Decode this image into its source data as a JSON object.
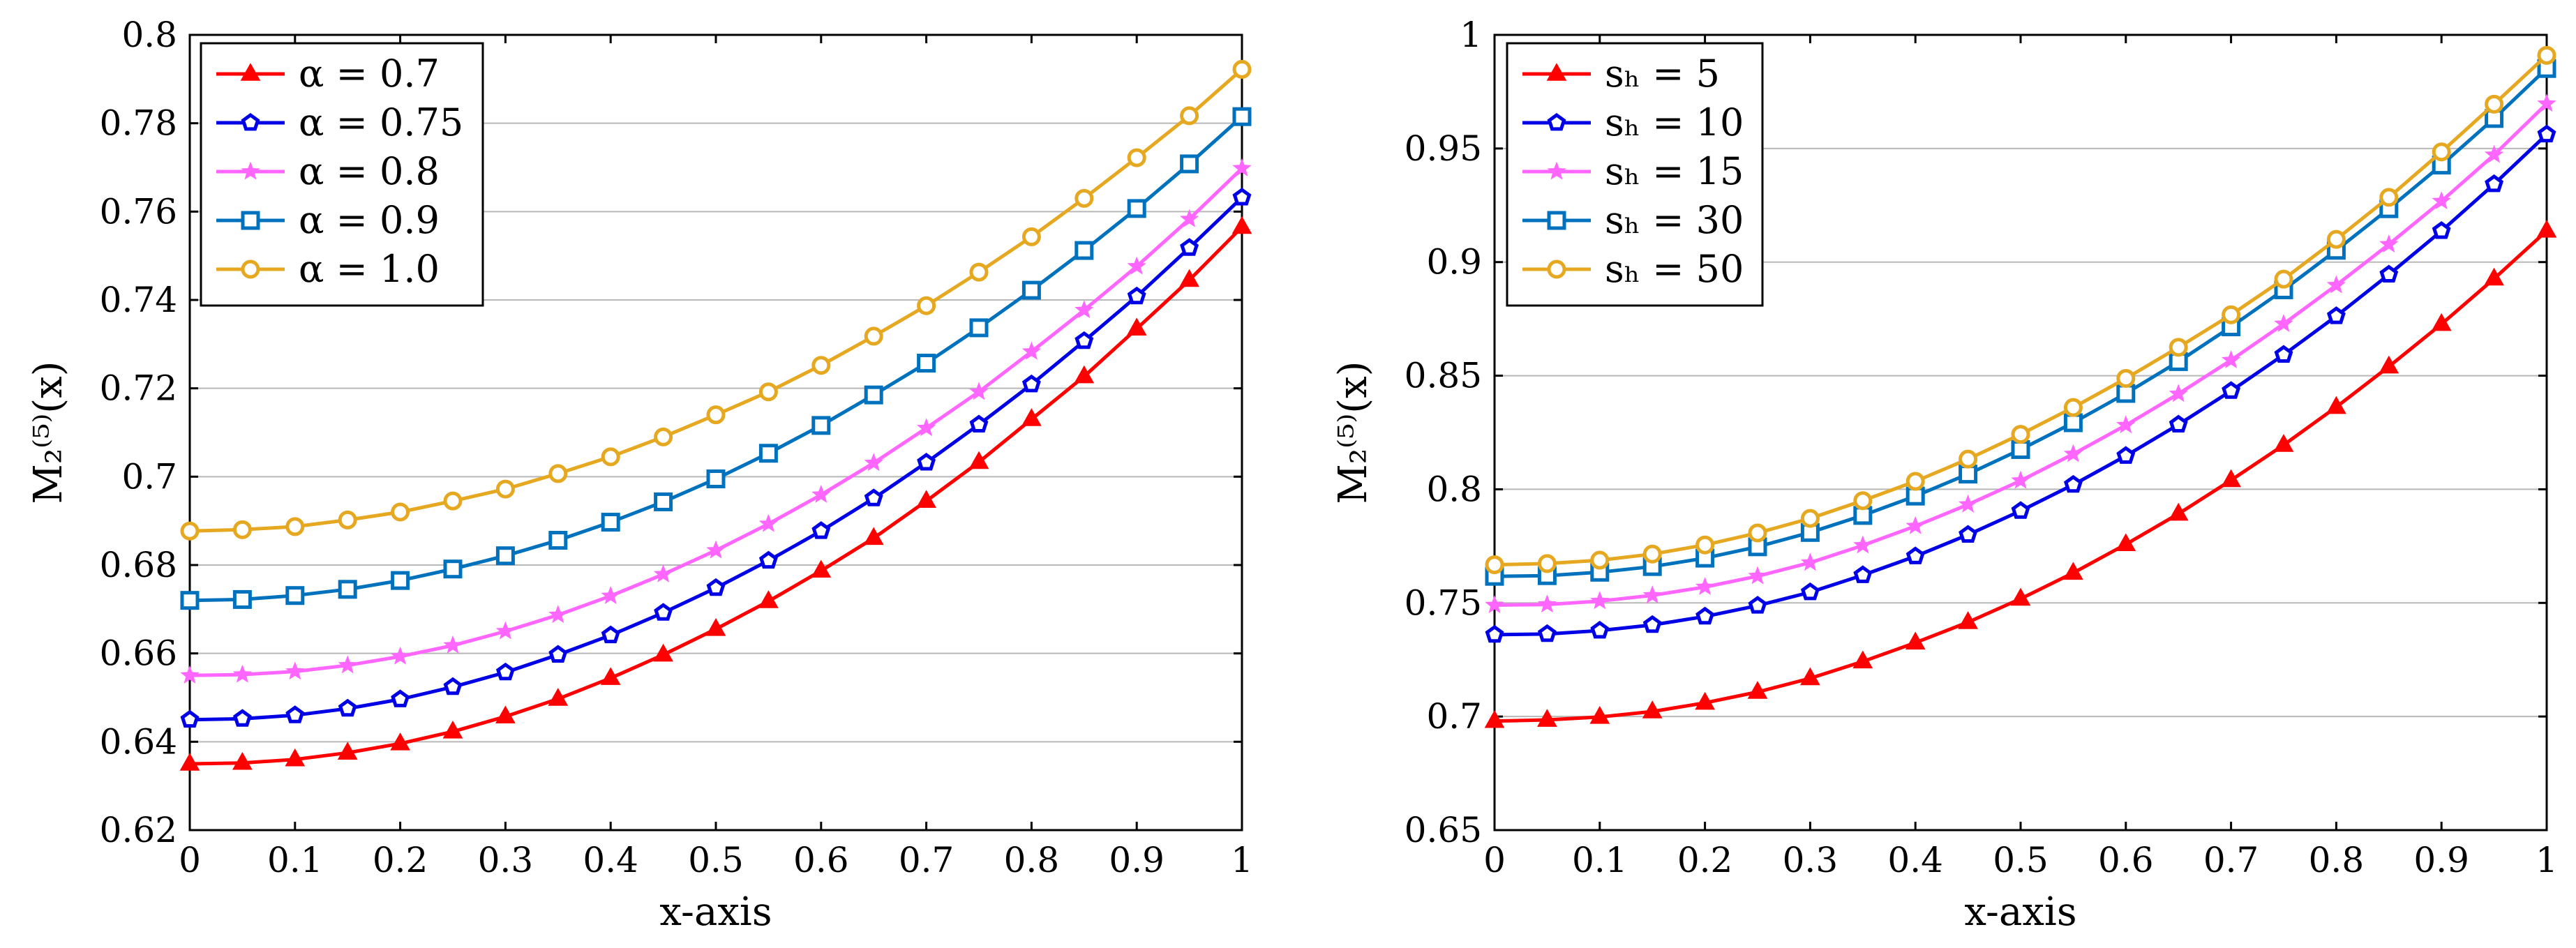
{
  "colors": {
    "red": "#ff0000",
    "blue": "#0000e6",
    "magenta": "#ff66ff",
    "steelblue": "#0072bd",
    "gold": "#e6a820",
    "grid": "#b8b8b8",
    "axis": "#000000"
  },
  "chart_data": [
    {
      "type": "line",
      "xlabel": "x-axis",
      "ylabel": "M₂⁽⁵⁾(x)",
      "xlim": [
        0,
        1
      ],
      "ylim": [
        0.62,
        0.8
      ],
      "xticks": [
        "0",
        "0.1",
        "0.2",
        "0.3",
        "0.4",
        "0.5",
        "0.6",
        "0.7",
        "0.8",
        "0.9",
        "1"
      ],
      "yticks": [
        "0.62",
        "0.64",
        "0.66",
        "0.68",
        "0.7",
        "0.72",
        "0.74",
        "0.76",
        "0.78",
        "0.8"
      ],
      "grid": "horizontal",
      "legend_position": "top-left",
      "x": [
        0,
        0.05,
        0.1,
        0.15,
        0.2,
        0.25,
        0.3,
        0.35,
        0.4,
        0.45,
        0.5,
        0.55,
        0.6,
        0.65,
        0.7,
        0.75,
        0.8,
        0.85,
        0.9,
        0.95,
        1.0
      ],
      "series": [
        {
          "name": "α = 0.7",
          "color": "red",
          "marker": "triangle",
          "values": [
            0.635,
            0.6352,
            0.636,
            0.6375,
            0.6396,
            0.6423,
            0.6457,
            0.6497,
            0.6544,
            0.6597,
            0.6655,
            0.6718,
            0.6787,
            0.6861,
            0.6945,
            0.7033,
            0.713,
            0.7227,
            0.7335,
            0.7445,
            0.7565
          ]
        },
        {
          "name": "α = 0.75",
          "color": "blue",
          "marker": "pentagon",
          "values": [
            0.645,
            0.6452,
            0.646,
            0.6475,
            0.6496,
            0.6524,
            0.6557,
            0.6597,
            0.6641,
            0.6692,
            0.6748,
            0.681,
            0.6877,
            0.6951,
            0.7032,
            0.7118,
            0.7209,
            0.7307,
            0.7408,
            0.7518,
            0.7632
          ]
        },
        {
          "name": "α = 0.8",
          "color": "magenta",
          "marker": "star",
          "values": [
            0.655,
            0.6552,
            0.6559,
            0.6573,
            0.6593,
            0.6618,
            0.665,
            0.6687,
            0.673,
            0.6779,
            0.6833,
            0.6893,
            0.6959,
            0.7031,
            0.711,
            0.7192,
            0.7283,
            0.7377,
            0.7476,
            0.7583,
            0.7698
          ]
        },
        {
          "name": "α = 0.9",
          "color": "steelblue",
          "marker": "square",
          "values": [
            0.672,
            0.6722,
            0.6731,
            0.6745,
            0.6765,
            0.6791,
            0.6821,
            0.6856,
            0.6897,
            0.6943,
            0.6995,
            0.7053,
            0.7116,
            0.7185,
            0.7257,
            0.7337,
            0.7422,
            0.7512,
            0.7607,
            0.7708,
            0.7815
          ]
        },
        {
          "name": "α = 1.0",
          "color": "gold",
          "marker": "circle",
          "values": [
            0.6877,
            0.688,
            0.6887,
            0.6902,
            0.692,
            0.6945,
            0.6972,
            0.7007,
            0.7045,
            0.709,
            0.714,
            0.7192,
            0.7252,
            0.7318,
            0.7387,
            0.7463,
            0.7543,
            0.763,
            0.7722,
            0.7817,
            0.7922
          ]
        }
      ]
    },
    {
      "type": "line",
      "xlabel": "x-axis",
      "ylabel": "M₂⁽⁵⁾(x)",
      "xlim": [
        0,
        1
      ],
      "ylim": [
        0.65,
        1.0
      ],
      "xticks": [
        "0",
        "0.1",
        "0.2",
        "0.3",
        "0.4",
        "0.5",
        "0.6",
        "0.7",
        "0.8",
        "0.9",
        "1"
      ],
      "yticks": [
        "0.65",
        "0.7",
        "0.75",
        "0.8",
        "0.85",
        "0.9",
        "0.95",
        "1"
      ],
      "grid": "horizontal",
      "legend_position": "top-left",
      "x": [
        0,
        0.05,
        0.1,
        0.15,
        0.2,
        0.25,
        0.3,
        0.35,
        0.4,
        0.45,
        0.5,
        0.55,
        0.6,
        0.65,
        0.7,
        0.75,
        0.8,
        0.85,
        0.9,
        0.95,
        1.0
      ],
      "series": [
        {
          "name": "sₕ = 5",
          "color": "red",
          "marker": "triangle",
          "values": [
            0.698,
            0.6985,
            0.6998,
            0.7022,
            0.706,
            0.7108,
            0.7168,
            0.7242,
            0.7325,
            0.7415,
            0.7518,
            0.7632,
            0.7758,
            0.7892,
            0.804,
            0.8195,
            0.8362,
            0.854,
            0.8727,
            0.8927,
            0.9138
          ]
        },
        {
          "name": "sₕ = 10",
          "color": "blue",
          "marker": "pentagon",
          "values": [
            0.736,
            0.7363,
            0.7378,
            0.7403,
            0.744,
            0.7488,
            0.7547,
            0.7622,
            0.7705,
            0.78,
            0.7905,
            0.802,
            0.8147,
            0.8285,
            0.8433,
            0.8592,
            0.8762,
            0.8945,
            0.9137,
            0.9343,
            0.9562
          ]
        },
        {
          "name": "sₕ = 15",
          "color": "magenta",
          "marker": "star",
          "values": [
            0.749,
            0.7493,
            0.7508,
            0.7533,
            0.757,
            0.7618,
            0.7677,
            0.7753,
            0.7838,
            0.7933,
            0.8038,
            0.8155,
            0.8282,
            0.842,
            0.8568,
            0.8728,
            0.8898,
            0.9078,
            0.9268,
            0.9472,
            0.9697
          ]
        },
        {
          "name": "sₕ = 30",
          "color": "steelblue",
          "marker": "square",
          "values": [
            0.7617,
            0.762,
            0.7635,
            0.766,
            0.7697,
            0.7747,
            0.781,
            0.7885,
            0.797,
            0.8067,
            0.8175,
            0.8293,
            0.8422,
            0.8562,
            0.8715,
            0.8878,
            0.9052,
            0.9235,
            0.9427,
            0.9632,
            0.9852
          ]
        },
        {
          "name": "sₕ = 50",
          "color": "gold",
          "marker": "circle",
          "values": [
            0.7668,
            0.7673,
            0.7688,
            0.7715,
            0.7755,
            0.7808,
            0.7872,
            0.795,
            0.8035,
            0.8133,
            0.8242,
            0.836,
            0.8488,
            0.8625,
            0.8768,
            0.8925,
            0.91,
            0.9285,
            0.9485,
            0.9695,
            0.991
          ]
        }
      ]
    }
  ]
}
